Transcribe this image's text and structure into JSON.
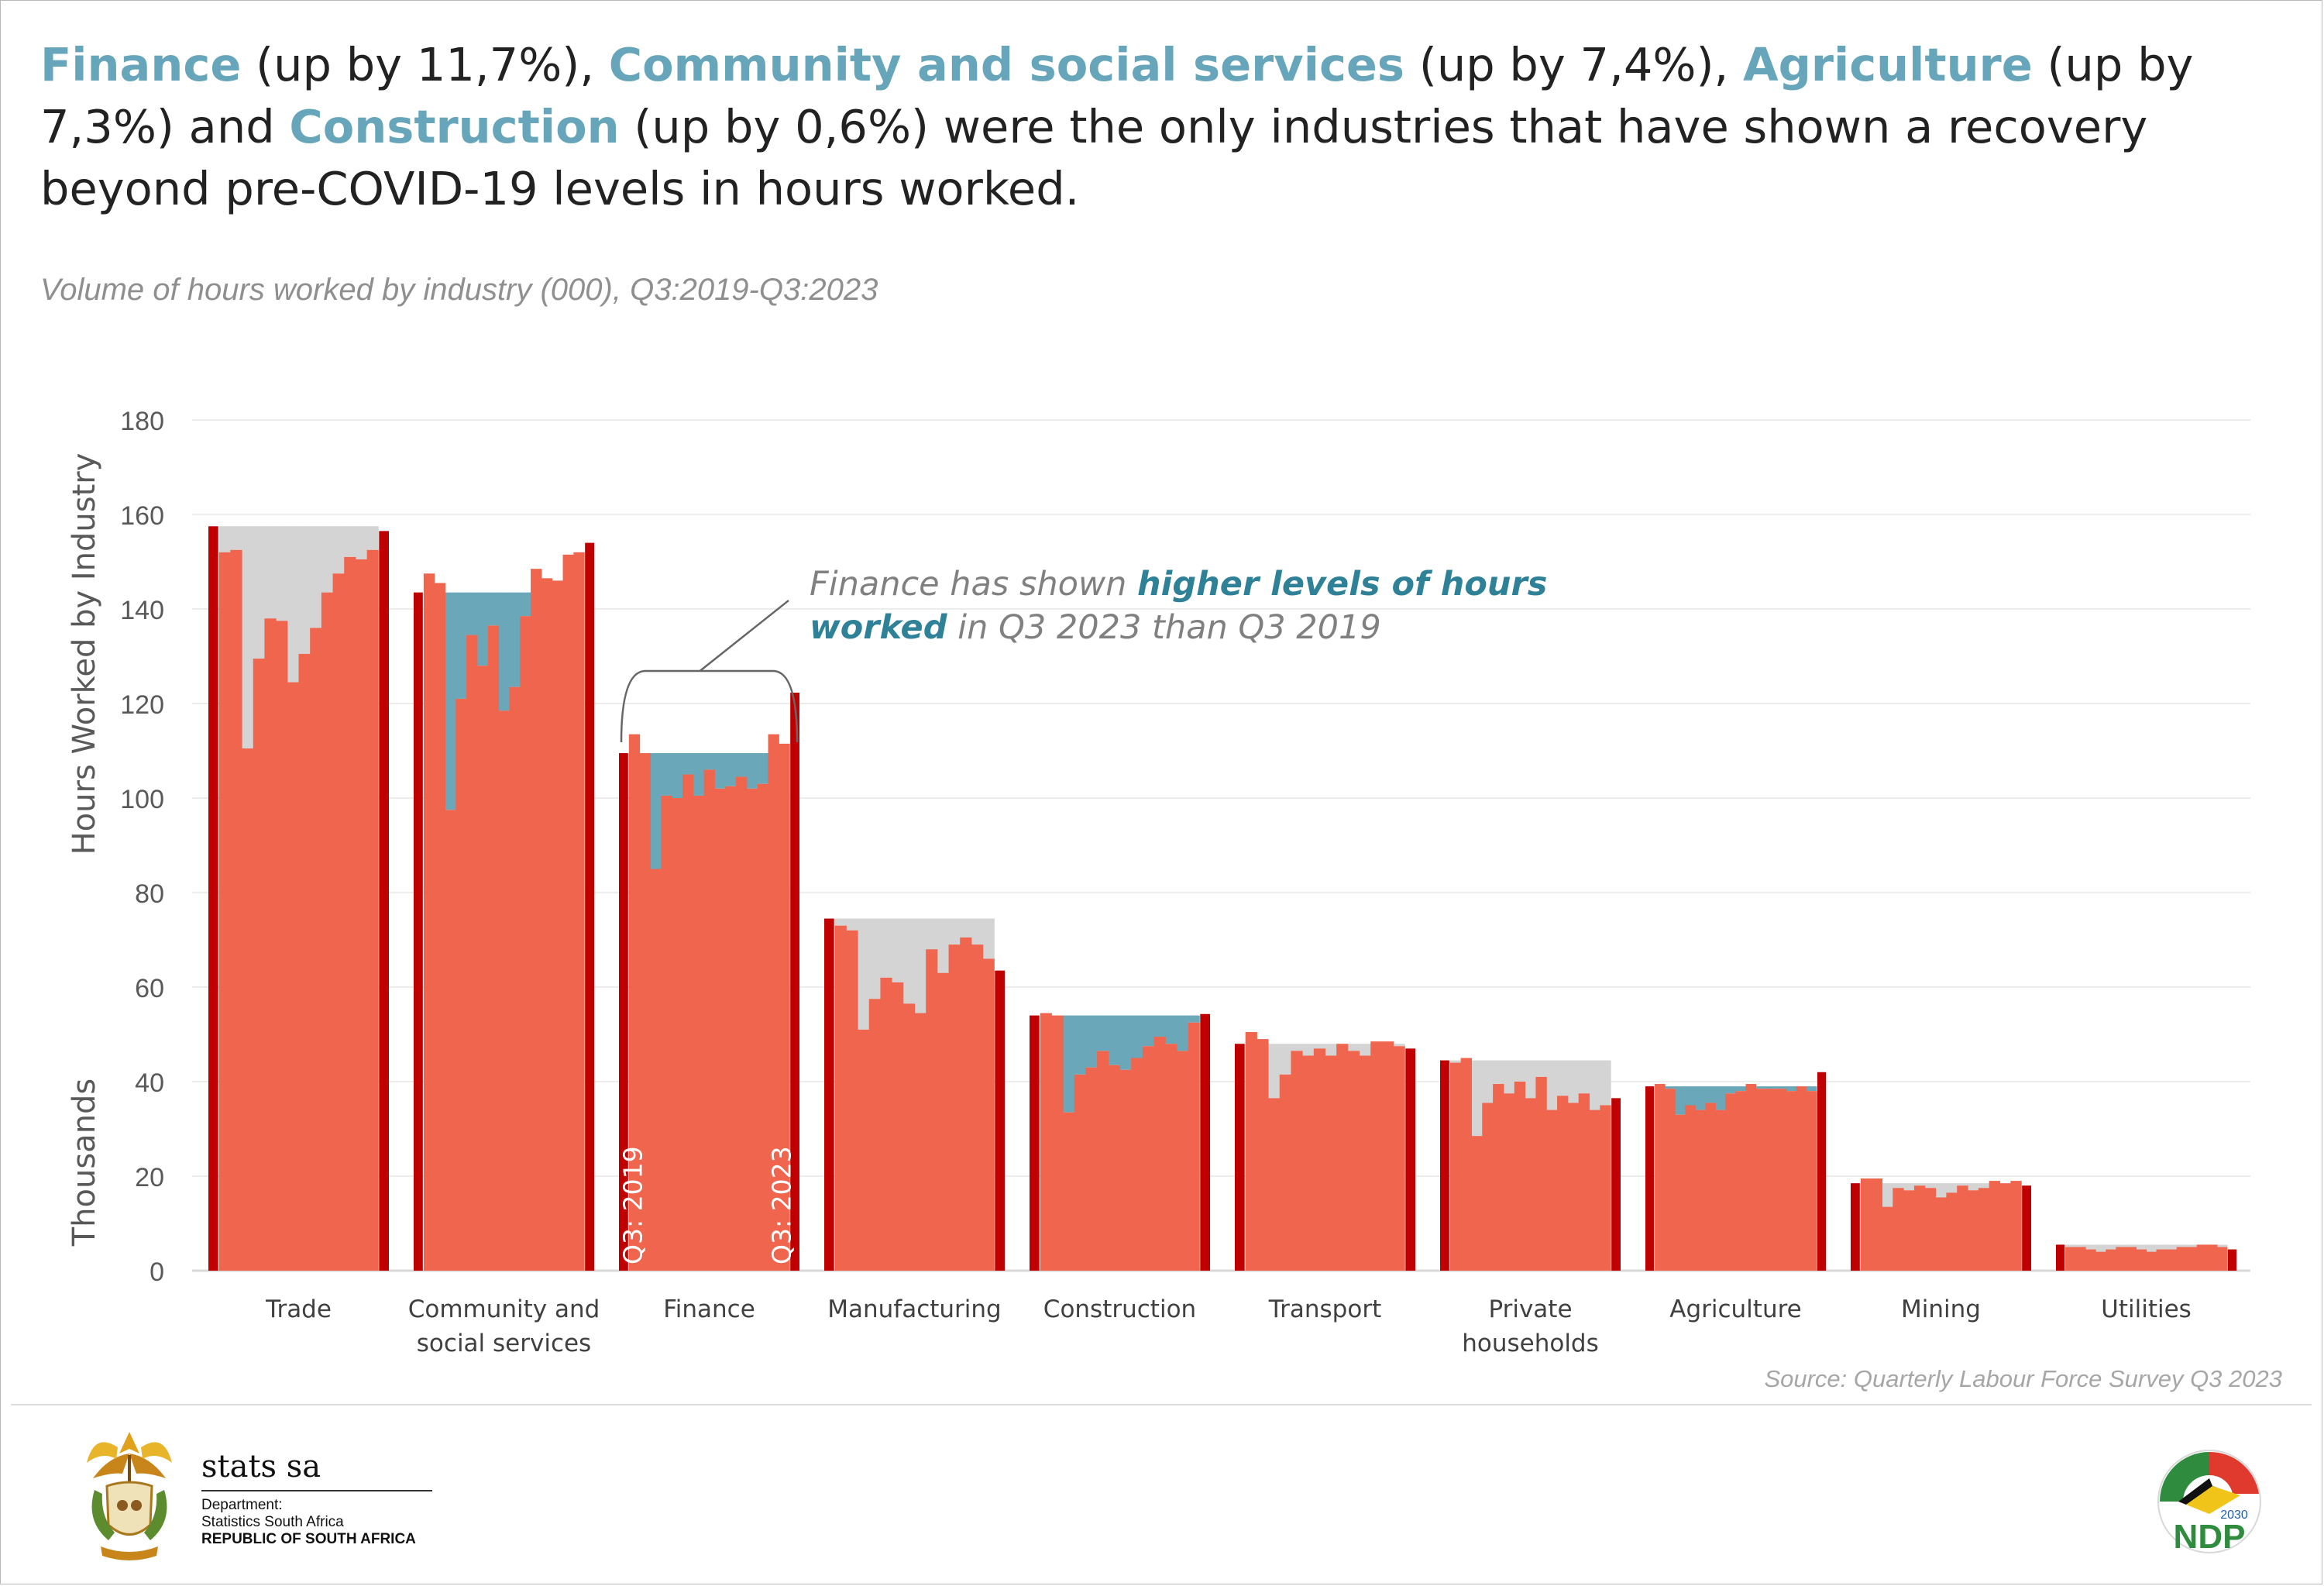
{
  "headline": {
    "parts": [
      {
        "text": "Finance",
        "hl": true
      },
      {
        "text": " (up by 11,7%), ",
        "hl": false
      },
      {
        "text": "Community and social services",
        "hl": true
      },
      {
        "text": " (up by 7,4%), ",
        "hl": false
      },
      {
        "text": "Agriculture",
        "hl": true
      },
      {
        "text": " (up by 7,3%) and ",
        "hl": false
      },
      {
        "text": "Construction",
        "hl": true
      },
      {
        "text": " (up by 0,6%) were the only industries that have shown a recovery beyond pre-COVID-19 levels in hours worked.",
        "hl": false
      }
    ]
  },
  "subtitle": "Volume of hours worked by industry (000), Q3:2019-Q3:2023",
  "annotation": {
    "line1_plain": "Finance has shown ",
    "line1_bold": "higher levels of hours",
    "line2_bold": "worked",
    "line2_plain": " in Q3 2023 than Q3 2019"
  },
  "source": "Source: Quarterly Labour Force Survey  Q3 2023",
  "logo": {
    "brand": "stats sa",
    "dept_line1": "Department:",
    "dept_line2": "Statistics South Africa",
    "dept_line3": "REPUBLIC OF SOUTH AFRICA",
    "ndp_text": "NDP",
    "ndp_year": "2030"
  },
  "colors": {
    "bar": "#ef654d",
    "bar_end": "#c00000",
    "gap_grey": "#d4d4d4",
    "gap_teal": "#6aa8b9",
    "highlight": "#67a6ba",
    "annotation_bold": "#2e8196"
  },
  "chart_data": {
    "type": "bar",
    "ylabel": "Hours Worked by Industry",
    "yunit_label": "Thousands",
    "ylim": [
      0,
      180
    ],
    "yticks": [
      0,
      20,
      40,
      60,
      80,
      100,
      120,
      140,
      160,
      180
    ],
    "grid": true,
    "start_label": "Q3: 2019",
    "end_label": "Q3: 2023",
    "categories": [
      {
        "name": "Trade",
        "label_lines": [
          "Trade"
        ],
        "recovered": false,
        "values": [
          157.5,
          152,
          152.5,
          110.5,
          129.5,
          138,
          137.5,
          124.5,
          130.5,
          136,
          143.5,
          147.5,
          151,
          150.5,
          152.5,
          156.5
        ]
      },
      {
        "name": "Community and social services",
        "label_lines": [
          "Community and",
          "social services"
        ],
        "recovered": true,
        "values": [
          143.5,
          147.5,
          145.5,
          97.5,
          121,
          134.5,
          128,
          136.5,
          118.5,
          123.5,
          138.5,
          148.5,
          146.5,
          146,
          151.5,
          152,
          154
        ]
      },
      {
        "name": "Finance",
        "label_lines": [
          "Finance"
        ],
        "recovered": true,
        "values": [
          109.5,
          113.5,
          109.5,
          85,
          100.5,
          100,
          105,
          100.5,
          106,
          102,
          102.5,
          104.5,
          102,
          103,
          113.5,
          111.5,
          122.3
        ]
      },
      {
        "name": "Manufacturing",
        "label_lines": [
          "Manufacturing"
        ],
        "recovered": false,
        "values": [
          74.5,
          73,
          72,
          51,
          57.5,
          62,
          61,
          56.5,
          54.5,
          68,
          63,
          69,
          70.5,
          69,
          66,
          63.5
        ]
      },
      {
        "name": "Construction",
        "label_lines": [
          "Construction"
        ],
        "recovered": true,
        "values": [
          54,
          54.5,
          54,
          33.5,
          41.5,
          43,
          46.5,
          43.5,
          42.5,
          45,
          47.5,
          49.5,
          48,
          46.5,
          52.5,
          54.3
        ]
      },
      {
        "name": "Transport",
        "label_lines": [
          "Transport"
        ],
        "recovered": false,
        "values": [
          48,
          50.5,
          49,
          36.5,
          41.5,
          46.5,
          45.5,
          47,
          45.5,
          48,
          46.5,
          45.5,
          48.5,
          48.5,
          47.5,
          47
        ]
      },
      {
        "name": "Private households",
        "label_lines": [
          "Private",
          "households"
        ],
        "recovered": false,
        "values": [
          44.5,
          44,
          45,
          28.5,
          35.5,
          39.5,
          37.5,
          40,
          36.5,
          41,
          34,
          37,
          35.5,
          37.5,
          34,
          35,
          36.5
        ]
      },
      {
        "name": "Agriculture",
        "label_lines": [
          "Agriculture"
        ],
        "recovered": true,
        "values": [
          39,
          39.5,
          38.5,
          33,
          35,
          34,
          35.5,
          34,
          37.5,
          38,
          39.5,
          38.5,
          38.5,
          38.5,
          38,
          39,
          38,
          42
        ]
      },
      {
        "name": "Mining",
        "label_lines": [
          "Mining"
        ],
        "recovered": false,
        "values": [
          18.5,
          19.5,
          19.5,
          13.5,
          17.5,
          17,
          18,
          17.5,
          15.5,
          16.5,
          18,
          17,
          17.5,
          19,
          18.5,
          19,
          18
        ]
      },
      {
        "name": "Utilities",
        "label_lines": [
          "Utilities"
        ],
        "recovered": false,
        "values": [
          5.5,
          5,
          5,
          4.5,
          4,
          4.5,
          5,
          5,
          4.5,
          4,
          4.5,
          4.5,
          5,
          5,
          5.5,
          5.5,
          5,
          4.5
        ]
      }
    ]
  }
}
